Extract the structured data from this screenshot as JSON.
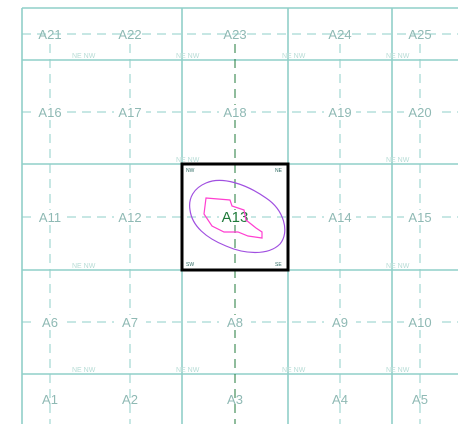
{
  "map": {
    "grid_rows": [
      [
        "A21",
        "A22",
        "A23",
        "A24",
        "A25"
      ],
      [
        "A16",
        "A17",
        "A18",
        "A19",
        "A20"
      ],
      [
        "A11",
        "A12",
        "A13",
        "A14",
        "A15"
      ],
      [
        "A6",
        "A7",
        "A8",
        "A9",
        "A10"
      ],
      [
        "A1",
        "A2",
        "A3",
        "A4",
        "A5"
      ]
    ],
    "selected_cell": "A13",
    "corner_labels": {
      "nw": "NW",
      "ne": "NE",
      "sw": "SW",
      "se": "SE"
    },
    "faint_labels": [
      {
        "text": "NE NW",
        "row": 0,
        "col": 0
      },
      {
        "text": "NE NW",
        "row": 0,
        "col": 1
      },
      {
        "text": "NE NW",
        "row": 0,
        "col": 2
      },
      {
        "text": "NE NW",
        "row": 0,
        "col": 3
      },
      {
        "text": "NE NW",
        "row": 1,
        "col": 1
      },
      {
        "text": "NE NW",
        "row": 1,
        "col": 3
      },
      {
        "text": "NE NW",
        "row": 2,
        "col": 0
      },
      {
        "text": "NE NW",
        "row": 2,
        "col": 3
      },
      {
        "text": "NE NW",
        "row": 3,
        "col": 0
      },
      {
        "text": "NE NW",
        "row": 3,
        "col": 1
      },
      {
        "text": "NE NW",
        "row": 3,
        "col": 2
      },
      {
        "text": "NE NW",
        "row": 3,
        "col": 3
      }
    ],
    "colors": {
      "grid": "#8fcfc8",
      "grid_dashed": "#8fcfc8",
      "selection_border": "#000000",
      "contour_outer": "#a04fe0",
      "contour_inner": "#ff3fd0",
      "active_label": "#1f7a3a"
    }
  }
}
